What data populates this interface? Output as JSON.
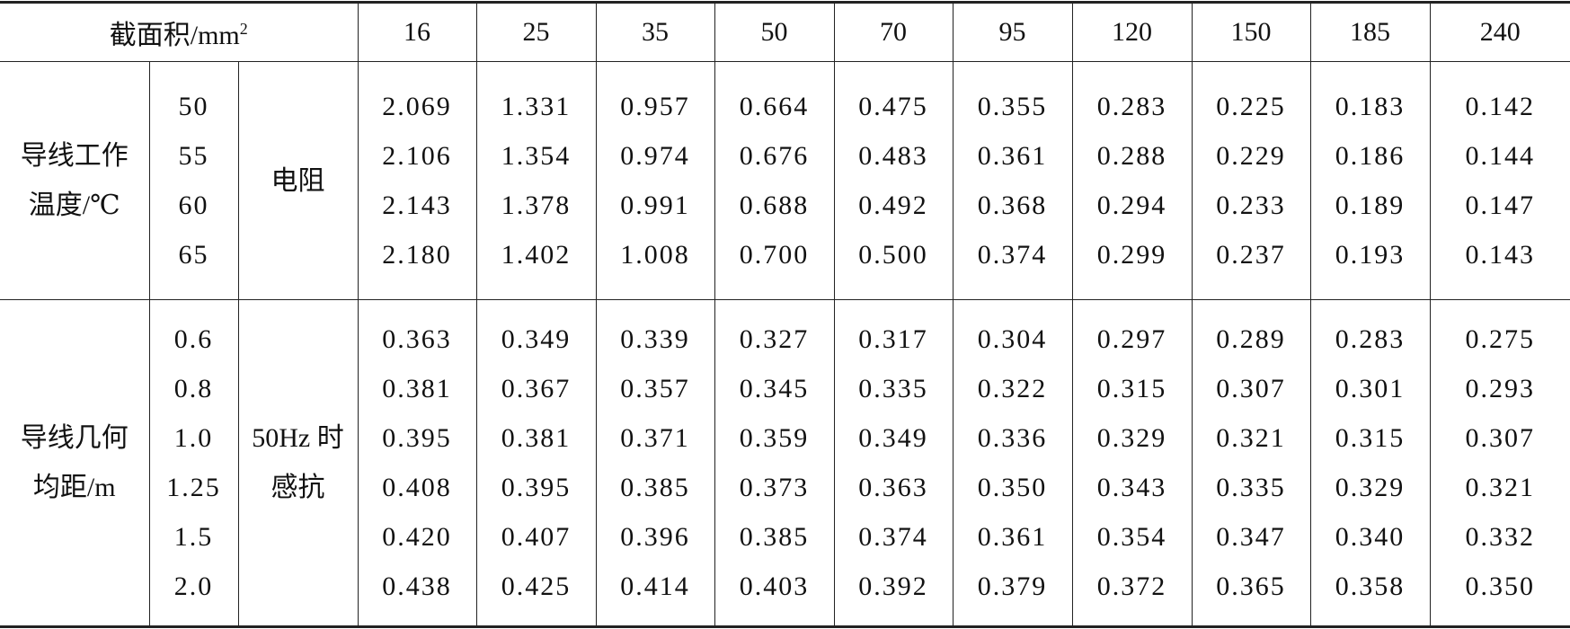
{
  "header": {
    "label": "截面积/mm",
    "label_sup": "2",
    "columns": [
      "16",
      "25",
      "35",
      "50",
      "70",
      "95",
      "120",
      "150",
      "185",
      "240"
    ]
  },
  "groups": [
    {
      "label": [
        "导线工作",
        "温度/℃"
      ],
      "quantity": [
        "电阻"
      ],
      "params": [
        "50",
        "55",
        "60",
        "65"
      ],
      "rows": [
        [
          "2.069",
          "1.331",
          "0.957",
          "0.664",
          "0.475",
          "0.355",
          "0.283",
          "0.225",
          "0.183",
          "0.142"
        ],
        [
          "2.106",
          "1.354",
          "0.974",
          "0.676",
          "0.483",
          "0.361",
          "0.288",
          "0.229",
          "0.186",
          "0.144"
        ],
        [
          "2.143",
          "1.378",
          "0.991",
          "0.688",
          "0.492",
          "0.368",
          "0.294",
          "0.233",
          "0.189",
          "0.147"
        ],
        [
          "2.180",
          "1.402",
          "1.008",
          "0.700",
          "0.500",
          "0.374",
          "0.299",
          "0.237",
          "0.193",
          "0.143"
        ]
      ]
    },
    {
      "label": [
        "导线几何",
        "均距/m"
      ],
      "quantity": [
        "50Hz 时",
        "感抗"
      ],
      "params": [
        "0.6",
        "0.8",
        "1.0",
        "1.25",
        "1.5",
        "2.0"
      ],
      "rows": [
        [
          "0.363",
          "0.349",
          "0.339",
          "0.327",
          "0.317",
          "0.304",
          "0.297",
          "0.289",
          "0.283",
          "0.275"
        ],
        [
          "0.381",
          "0.367",
          "0.357",
          "0.345",
          "0.335",
          "0.322",
          "0.315",
          "0.307",
          "0.301",
          "0.293"
        ],
        [
          "0.395",
          "0.381",
          "0.371",
          "0.359",
          "0.349",
          "0.336",
          "0.329",
          "0.321",
          "0.315",
          "0.307"
        ],
        [
          "0.408",
          "0.395",
          "0.385",
          "0.373",
          "0.363",
          "0.350",
          "0.343",
          "0.335",
          "0.329",
          "0.321"
        ],
        [
          "0.420",
          "0.407",
          "0.396",
          "0.385",
          "0.374",
          "0.361",
          "0.354",
          "0.347",
          "0.340",
          "0.332"
        ],
        [
          "0.438",
          "0.425",
          "0.414",
          "0.403",
          "0.392",
          "0.379",
          "0.372",
          "0.365",
          "0.358",
          "0.350"
        ]
      ]
    }
  ]
}
